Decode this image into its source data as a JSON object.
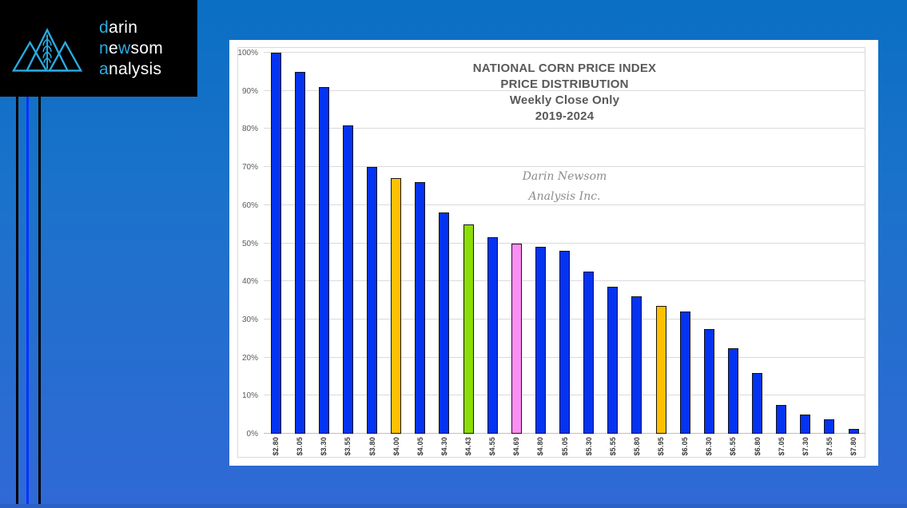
{
  "page": {
    "background_top": "#0a6fc3",
    "background_bottom": "#3069d6",
    "footer_strip_color": "#2b60c4"
  },
  "decor": {
    "stripe_colors": [
      "#000000",
      "#0535ff",
      "#000000"
    ]
  },
  "logo": {
    "accent_color": "#29abe2",
    "text_color": "#ffffff",
    "brand_lines": [
      {
        "segments": [
          {
            "text": "d",
            "accent": true
          },
          {
            "text": "arin",
            "accent": false
          }
        ]
      },
      {
        "segments": [
          {
            "text": "n",
            "accent": true
          },
          {
            "text": "e",
            "accent": false
          },
          {
            "text": "w",
            "accent": true
          },
          {
            "text": "som",
            "accent": false
          }
        ]
      },
      {
        "segments": [
          {
            "text": "a",
            "accent": true
          },
          {
            "text": "nalysis",
            "accent": false
          }
        ]
      }
    ]
  },
  "chart_data": {
    "type": "bar",
    "title_lines": [
      "NATIONAL CORN PRICE INDEX",
      "PRICE DISTRIBUTION",
      "Weekly Close Only",
      "2019-2024"
    ],
    "watermark_lines": [
      "Darin Newsom",
      "Analysis Inc."
    ],
    "categories": [
      "$2.80",
      "$3.05",
      "$3.30",
      "$3.55",
      "$3.80",
      "$4.00",
      "$4.05",
      "$4.30",
      "$4.43",
      "$4.55",
      "$4.69",
      "$4.80",
      "$5.05",
      "$5.30",
      "$5.55",
      "$5.80",
      "$5.95",
      "$6.05",
      "$6.30",
      "$6.55",
      "$6.80",
      "$7.05",
      "$7.30",
      "$7.55",
      "$7.80"
    ],
    "values": [
      100,
      95,
      91,
      81,
      70,
      67,
      66,
      58,
      55,
      51.5,
      50,
      49,
      48,
      42.5,
      38.5,
      36,
      33.5,
      32,
      27.5,
      22.5,
      16,
      7.5,
      5,
      3.8,
      1.3
    ],
    "bar_colors": [
      "#0433f2",
      "#0433f2",
      "#0433f2",
      "#0433f2",
      "#0433f2",
      "#ffc000",
      "#0433f2",
      "#0433f2",
      "#8cdd08",
      "#0433f2",
      "#fb8ef2",
      "#0433f2",
      "#0433f2",
      "#0433f2",
      "#0433f2",
      "#0433f2",
      "#ffc000",
      "#0433f2",
      "#0433f2",
      "#0433f2",
      "#0433f2",
      "#0433f2",
      "#0433f2",
      "#0433f2",
      "#0433f2"
    ],
    "default_bar_color": "#0433f2",
    "highlight_colors": {
      "gold": "#ffc000",
      "green": "#8cdd08",
      "pink": "#fb8ef2"
    },
    "y_ticks": [
      "0%",
      "10%",
      "20%",
      "30%",
      "40%",
      "50%",
      "60%",
      "70%",
      "80%",
      "90%",
      "100%"
    ],
    "ylim": [
      0,
      100
    ],
    "xlabel": "",
    "ylabel": "",
    "grid": true,
    "legend": "none"
  }
}
